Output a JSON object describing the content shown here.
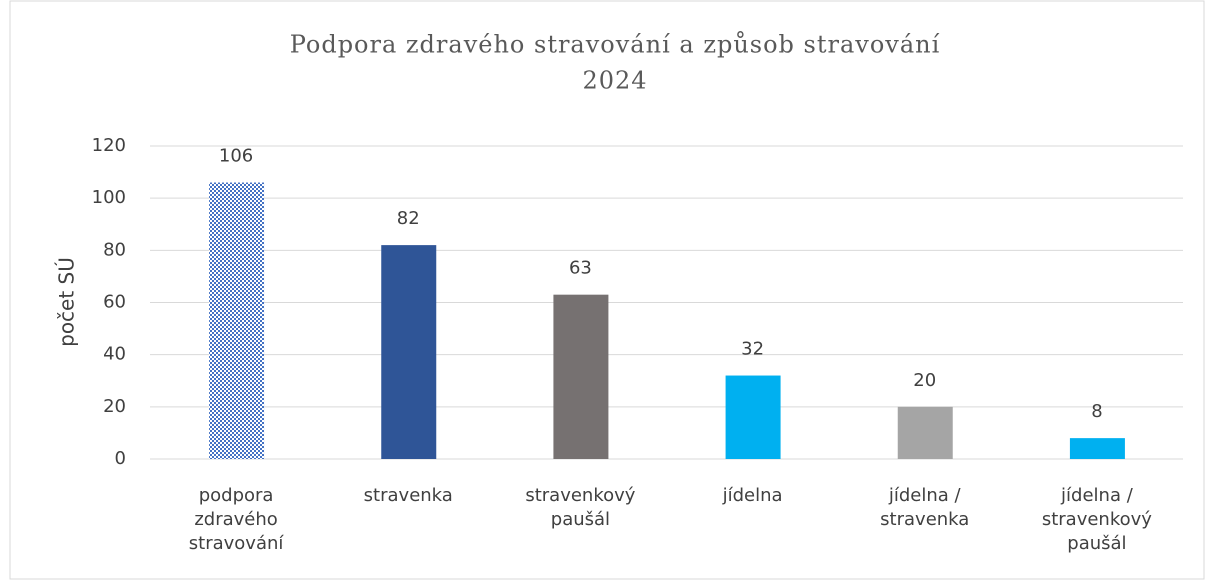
{
  "chart_data": {
    "type": "bar",
    "title": [
      "Podpora zdravého stravování a způsob stravování",
      "2024"
    ],
    "y_label": "počet SÚ",
    "categories": [
      "podpora zdravého stravování",
      "stravenka",
      "stravenkový paušál",
      "jídelna",
      "jídelna / stravenka",
      "jídelna / stravenkový paušál"
    ],
    "values": [
      106,
      82,
      63,
      32,
      20,
      8
    ],
    "colors": [
      "#4472c4",
      "#2f5597",
      "#767171",
      "#00b0f0",
      "#a5a5a5",
      "#00b0f0"
    ],
    "bar_patterns": [
      "checker",
      null,
      null,
      null,
      null,
      null
    ],
    "ylim": [
      0,
      120
    ],
    "yticks": [
      0,
      20,
      40,
      60,
      80,
      100,
      120
    ],
    "grid": true
  }
}
